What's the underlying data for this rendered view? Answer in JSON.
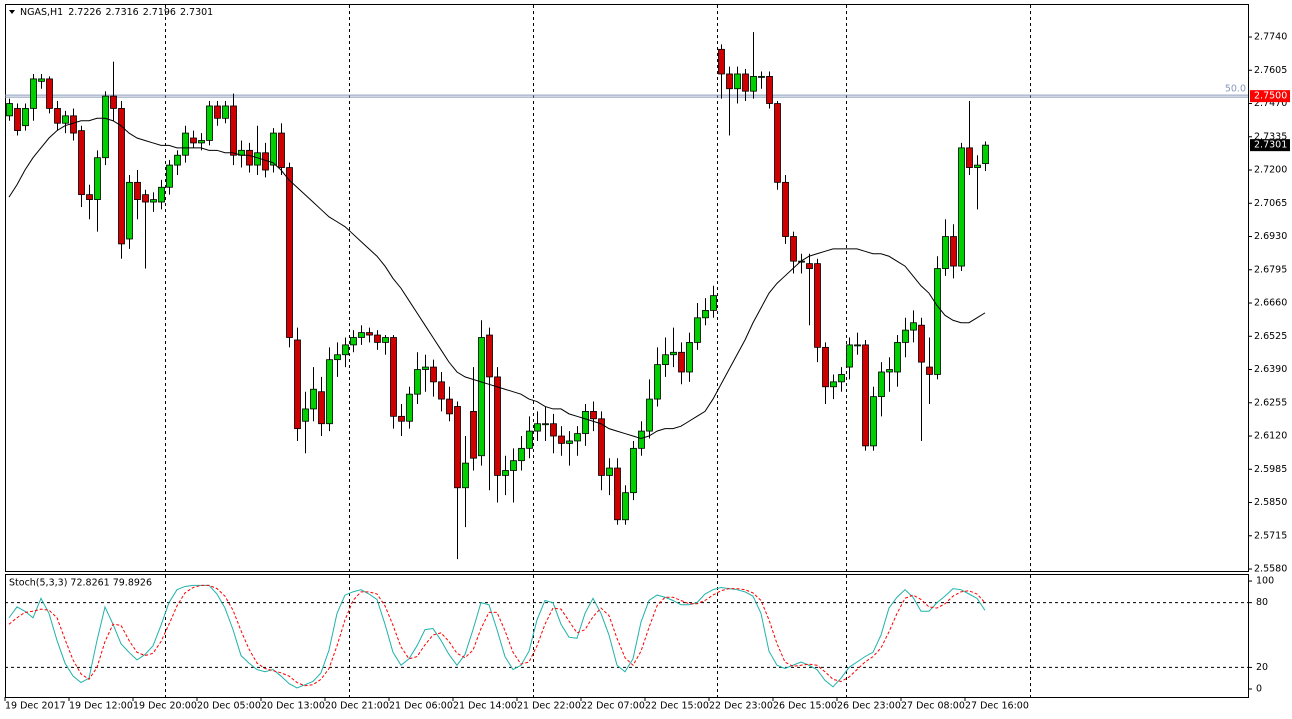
{
  "header": {
    "symbol": "NGAS,H1",
    "ohlc": [
      "2.7226",
      "2.7316",
      "2.7196",
      "2.7301"
    ]
  },
  "chart_data": [
    {
      "type": "candlestick",
      "open": [
        2.742,
        2.745,
        2.738,
        2.745,
        2.756,
        2.757,
        2.745,
        2.739,
        2.742,
        2.736,
        2.71,
        2.708,
        2.725,
        2.75,
        2.745,
        2.692,
        2.715,
        2.71,
        2.707,
        2.707,
        2.713,
        2.722,
        2.726,
        2.733,
        2.731,
        2.732,
        2.746,
        2.741,
        2.746,
        2.726,
        2.728,
        2.722,
        2.727,
        2.722,
        2.735,
        2.721,
        2.651,
        2.618,
        2.623,
        2.63,
        2.617,
        2.643,
        2.645,
        2.649,
        2.652,
        2.654,
        2.653,
        2.65,
        2.652,
        2.62,
        2.618,
        2.629,
        2.639,
        2.64,
        2.634,
        2.627,
        2.624,
        2.591,
        2.622,
        2.604,
        2.653,
        2.636,
        2.596,
        2.598,
        2.602,
        2.607,
        2.614,
        2.617,
        2.617,
        2.612,
        2.609,
        2.61,
        2.613,
        2.622,
        2.619,
        2.596,
        2.599,
        2.578,
        2.589,
        2.607,
        2.614,
        2.627,
        2.641,
        2.645,
        2.646,
        2.638,
        2.65,
        2.66,
        2.663,
        2.769,
        2.759,
        2.753,
        2.759,
        2.752,
        2.758,
        2.758,
        2.747,
        2.715,
        2.693,
        2.683,
        2.682,
        2.682,
        2.648,
        2.632,
        2.634,
        2.64,
        2.649,
        2.649,
        2.608,
        2.628,
        2.638,
        2.638,
        2.65,
        2.655,
        2.657,
        2.64,
        2.637,
        2.68,
        2.693,
        2.681,
        2.729,
        2.721,
        2.7226
      ],
      "high": [
        2.749,
        2.747,
        2.747,
        2.759,
        2.759,
        2.758,
        2.748,
        2.744,
        2.745,
        2.738,
        2.714,
        2.728,
        2.752,
        2.764,
        2.748,
        2.718,
        2.72,
        2.712,
        2.711,
        2.716,
        2.724,
        2.728,
        2.738,
        2.736,
        2.735,
        2.748,
        2.748,
        2.748,
        2.751,
        2.732,
        2.731,
        2.738,
        2.731,
        2.737,
        2.739,
        2.723,
        2.656,
        2.63,
        2.64,
        2.636,
        2.648,
        2.65,
        2.652,
        2.655,
        2.657,
        2.656,
        2.655,
        2.653,
        2.653,
        2.625,
        2.632,
        2.646,
        2.645,
        2.643,
        2.638,
        2.632,
        2.626,
        2.612,
        2.64,
        2.659,
        2.656,
        2.64,
        2.604,
        2.607,
        2.612,
        2.62,
        2.622,
        2.624,
        2.621,
        2.616,
        2.614,
        2.616,
        2.625,
        2.626,
        2.622,
        2.603,
        2.603,
        2.592,
        2.61,
        2.618,
        2.635,
        2.648,
        2.652,
        2.656,
        2.65,
        2.654,
        2.666,
        2.668,
        2.673,
        2.771,
        2.762,
        2.762,
        2.761,
        2.776,
        2.76,
        2.76,
        2.748,
        2.718,
        2.695,
        2.686,
        2.686,
        2.684,
        2.65,
        2.637,
        2.64,
        2.652,
        2.654,
        2.651,
        2.632,
        2.642,
        2.644,
        2.653,
        2.66,
        2.663,
        2.66,
        2.652,
        2.685,
        2.7,
        2.698,
        2.731,
        2.748,
        2.726,
        2.7316
      ],
      "low": [
        2.74,
        2.734,
        2.736,
        2.74,
        2.753,
        2.743,
        2.736,
        2.735,
        2.732,
        2.705,
        2.7,
        2.695,
        2.722,
        2.74,
        2.684,
        2.688,
        2.7,
        2.68,
        2.703,
        2.704,
        2.71,
        2.718,
        2.723,
        2.729,
        2.728,
        2.73,
        2.738,
        2.739,
        2.722,
        2.721,
        2.719,
        2.718,
        2.717,
        2.719,
        2.718,
        2.648,
        2.61,
        2.605,
        2.618,
        2.612,
        2.614,
        2.636,
        2.64,
        2.646,
        2.649,
        2.65,
        2.647,
        2.645,
        2.615,
        2.612,
        2.615,
        2.625,
        2.63,
        2.628,
        2.622,
        2.618,
        2.562,
        2.575,
        2.598,
        2.6,
        2.59,
        2.585,
        2.588,
        2.585,
        2.598,
        2.603,
        2.61,
        2.61,
        2.605,
        2.604,
        2.6,
        2.604,
        2.608,
        2.614,
        2.59,
        2.588,
        2.576,
        2.576,
        2.586,
        2.604,
        2.611,
        2.624,
        2.636,
        2.64,
        2.633,
        2.634,
        2.647,
        2.657,
        2.66,
        2.749,
        2.734,
        2.747,
        2.748,
        2.749,
        2.753,
        2.745,
        2.712,
        2.69,
        2.678,
        2.678,
        2.657,
        2.642,
        2.625,
        2.627,
        2.63,
        2.635,
        2.645,
        2.606,
        2.606,
        2.62,
        2.63,
        2.632,
        2.644,
        2.65,
        2.61,
        2.625,
        2.635,
        2.677,
        2.676,
        2.679,
        2.718,
        2.704,
        2.7196
      ],
      "close": [
        2.747,
        2.736,
        2.745,
        2.757,
        2.757,
        2.745,
        2.739,
        2.742,
        2.735,
        2.71,
        2.708,
        2.725,
        2.75,
        2.745,
        2.69,
        2.715,
        2.708,
        2.707,
        2.708,
        2.713,
        2.722,
        2.726,
        2.735,
        2.731,
        2.732,
        2.746,
        2.741,
        2.746,
        2.726,
        2.728,
        2.722,
        2.727,
        2.72,
        2.735,
        2.721,
        2.652,
        2.615,
        2.623,
        2.631,
        2.617,
        2.643,
        2.645,
        2.649,
        2.652,
        2.654,
        2.653,
        2.65,
        2.652,
        2.62,
        2.618,
        2.629,
        2.639,
        2.64,
        2.634,
        2.627,
        2.621,
        2.591,
        2.601,
        2.603,
        2.652,
        2.636,
        2.596,
        2.598,
        2.602,
        2.607,
        2.614,
        2.617,
        2.617,
        2.612,
        2.609,
        2.61,
        2.613,
        2.622,
        2.619,
        2.596,
        2.599,
        2.578,
        2.589,
        2.607,
        2.614,
        2.627,
        2.641,
        2.645,
        2.646,
        2.638,
        2.65,
        2.66,
        2.663,
        2.669,
        2.759,
        2.753,
        2.759,
        2.752,
        2.758,
        2.758,
        2.747,
        2.715,
        2.693,
        2.683,
        2.683,
        2.68,
        2.648,
        2.632,
        2.634,
        2.637,
        2.649,
        2.649,
        2.608,
        2.628,
        2.638,
        2.639,
        2.65,
        2.655,
        2.658,
        2.642,
        2.637,
        2.68,
        2.693,
        2.681,
        2.729,
        2.721,
        2.722,
        2.7301
      ],
      "up_color": "#00d000",
      "down_color": "#d00000",
      "ylim": [
        2.5572,
        2.787
      ],
      "yticks": [
        {
          "value": 2.774,
          "label": "2.7740"
        },
        {
          "value": 2.7605,
          "label": "2.7605"
        },
        {
          "value": 2.747,
          "label": "2.7470"
        },
        {
          "value": 2.7335,
          "label": "2.7335"
        },
        {
          "value": 2.72,
          "label": "2.7200"
        },
        {
          "value": 2.7065,
          "label": "2.7065"
        },
        {
          "value": 2.693,
          "label": "2.6930"
        },
        {
          "value": 2.6795,
          "label": "2.6795"
        },
        {
          "value": 2.666,
          "label": "2.6660"
        },
        {
          "value": 2.6525,
          "label": "2.6525"
        },
        {
          "value": 2.639,
          "label": "2.6390"
        },
        {
          "value": 2.6255,
          "label": "2.6255"
        },
        {
          "value": 2.612,
          "label": "2.6120"
        },
        {
          "value": 2.5985,
          "label": "2.5985"
        },
        {
          "value": 2.585,
          "label": "2.5850"
        },
        {
          "value": 2.5715,
          "label": "2.5715"
        },
        {
          "value": 2.558,
          "label": "2.5580"
        }
      ],
      "ma": {
        "color": "#000000",
        "values": [
          2.709,
          2.714,
          2.72,
          2.725,
          2.729,
          2.733,
          2.736,
          2.738,
          2.739,
          2.74,
          2.74,
          2.741,
          2.741,
          2.74,
          2.738,
          2.735,
          2.733,
          2.732,
          2.731,
          2.73,
          2.73,
          2.729,
          2.729,
          2.729,
          2.729,
          2.728,
          2.728,
          2.727,
          2.727,
          2.726,
          2.726,
          2.725,
          2.724,
          2.723,
          2.72,
          2.716,
          2.713,
          2.71,
          2.707,
          2.704,
          2.701,
          2.699,
          2.697,
          2.694,
          2.691,
          2.688,
          2.685,
          2.681,
          2.676,
          2.672,
          2.667,
          2.662,
          2.657,
          2.652,
          2.647,
          2.642,
          2.638,
          2.636,
          2.635,
          2.634,
          2.633,
          2.632,
          2.631,
          2.63,
          2.629,
          2.627,
          2.626,
          2.624,
          2.623,
          2.623,
          2.621,
          2.62,
          2.619,
          2.618,
          2.617,
          2.615,
          2.614,
          2.613,
          2.612,
          2.611,
          2.612,
          2.614,
          2.615,
          2.615,
          2.616,
          2.618,
          2.62,
          2.622,
          2.627,
          2.633,
          2.639,
          2.645,
          2.651,
          2.658,
          2.664,
          2.67,
          2.674,
          2.677,
          2.68,
          2.683,
          2.685,
          2.686,
          2.687,
          2.688,
          2.688,
          2.688,
          2.688,
          2.687,
          2.686,
          2.686,
          2.685,
          2.683,
          2.681,
          2.677,
          2.673,
          2.67,
          2.665,
          2.661,
          2.659,
          2.658,
          2.658,
          2.66,
          2.662
        ]
      },
      "level": {
        "value": 2.75,
        "label": "2.7500",
        "tag": "50.0",
        "color": "#8899bb",
        "label_color": "#ff0000"
      },
      "bid": {
        "value": 2.7301,
        "label": "2.7301"
      },
      "x_labels": [
        "19 Dec 2017",
        "19 Dec 12:00",
        "19 Dec 20:00",
        "20 Dec 05:00",
        "20 Dec 13:00",
        "20 Dec 21:00",
        "21 Dec 06:00",
        "21 Dec 14:00",
        "21 Dec 22:00",
        "22 Dec 07:00",
        "22 Dec 15:00",
        "22 Dec 23:00",
        "26 Dec 15:00",
        "26 Dec 23:00",
        "27 Dec 08:00",
        "27 Dec 16:00"
      ]
    },
    {
      "type": "line",
      "title": "Stoch(5,3,3) 72.8261 79.8926",
      "ylim": [
        -7.4,
        105.6
      ],
      "yticks": [
        100,
        80,
        20,
        0
      ],
      "levels": [
        80,
        20
      ],
      "series": [
        {
          "color": "#20b2aa",
          "dashed": false,
          "values": [
            66,
            76,
            72,
            66,
            84,
            70,
            45,
            24,
            12,
            6,
            10,
            45,
            76,
            60,
            42,
            34,
            27,
            32,
            40,
            59,
            80,
            92,
            95,
            96,
            96,
            96,
            88,
            75,
            55,
            31,
            24,
            18,
            16,
            18,
            12,
            5,
            1,
            4,
            7,
            15,
            36,
            70,
            87,
            90,
            92,
            88,
            83,
            60,
            34,
            22,
            28,
            40,
            55,
            56,
            45,
            32,
            22,
            32,
            55,
            80,
            78,
            55,
            30,
            18,
            22,
            35,
            64,
            82,
            80,
            60,
            48,
            47,
            70,
            84,
            70,
            50,
            22,
            16,
            28,
            62,
            82,
            87,
            85,
            82,
            78,
            78,
            80,
            88,
            92,
            94,
            93,
            92,
            90,
            86,
            70,
            35,
            22,
            19,
            22,
            25,
            22,
            18,
            8,
            2,
            10,
            20,
            25,
            30,
            34,
            50,
            75,
            85,
            92,
            85,
            72,
            72,
            80,
            86,
            93,
            92,
            88,
            84,
            72.8261
          ]
        },
        {
          "color": "#ff0000",
          "dashed": true,
          "values": [
            60,
            66,
            71,
            72,
            74,
            73,
            66,
            46,
            27,
            14,
            9,
            20,
            44,
            60,
            59,
            45,
            34,
            31,
            33,
            44,
            60,
            77,
            89,
            94,
            96,
            96,
            93,
            86,
            73,
            54,
            37,
            24,
            19,
            17,
            15,
            12,
            6,
            3,
            4,
            9,
            19,
            40,
            64,
            82,
            90,
            90,
            88,
            77,
            59,
            39,
            28,
            30,
            41,
            50,
            52,
            44,
            33,
            29,
            36,
            56,
            71,
            71,
            54,
            34,
            23,
            25,
            40,
            60,
            75,
            74,
            63,
            52,
            55,
            67,
            75,
            68,
            47,
            29,
            22,
            35,
            57,
            77,
            85,
            85,
            82,
            79,
            79,
            82,
            87,
            91,
            93,
            93,
            92,
            89,
            82,
            64,
            42,
            25,
            21,
            22,
            23,
            22,
            16,
            9,
            7,
            11,
            18,
            25,
            30,
            38,
            53,
            70,
            84,
            87,
            83,
            76,
            75,
            79,
            86,
            90,
            91,
            88,
            79.8926
          ]
        }
      ]
    }
  ]
}
